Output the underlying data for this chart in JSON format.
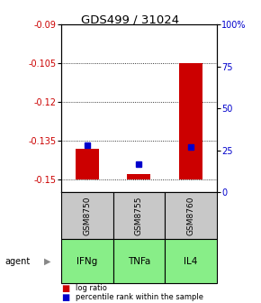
{
  "title": "GDS499 / 31024",
  "samples": [
    "GSM8750",
    "GSM8755",
    "GSM8760"
  ],
  "agents": [
    "IFNg",
    "TNFa",
    "IL4"
  ],
  "log_ratios": [
    -0.138,
    -0.148,
    -0.105
  ],
  "percentile_ranks": [
    28,
    17,
    27
  ],
  "ylim_left": [
    -0.155,
    -0.09
  ],
  "ylim_right": [
    0,
    100
  ],
  "yticks_left": [
    -0.15,
    -0.135,
    -0.12,
    -0.105,
    -0.09
  ],
  "yticks_right": [
    0,
    25,
    50,
    75,
    100
  ],
  "ytick_labels_left": [
    "-0.15",
    "-0.135",
    "-0.12",
    "-0.105",
    "-0.09"
  ],
  "ytick_labels_right": [
    "0",
    "25",
    "50",
    "75",
    "100%"
  ],
  "bar_color": "#cc0000",
  "dot_color": "#0000cc",
  "sample_bg_color": "#c8c8c8",
  "agent_bg_color": "#88ee88",
  "bar_width": 0.45,
  "bar_base": -0.15
}
